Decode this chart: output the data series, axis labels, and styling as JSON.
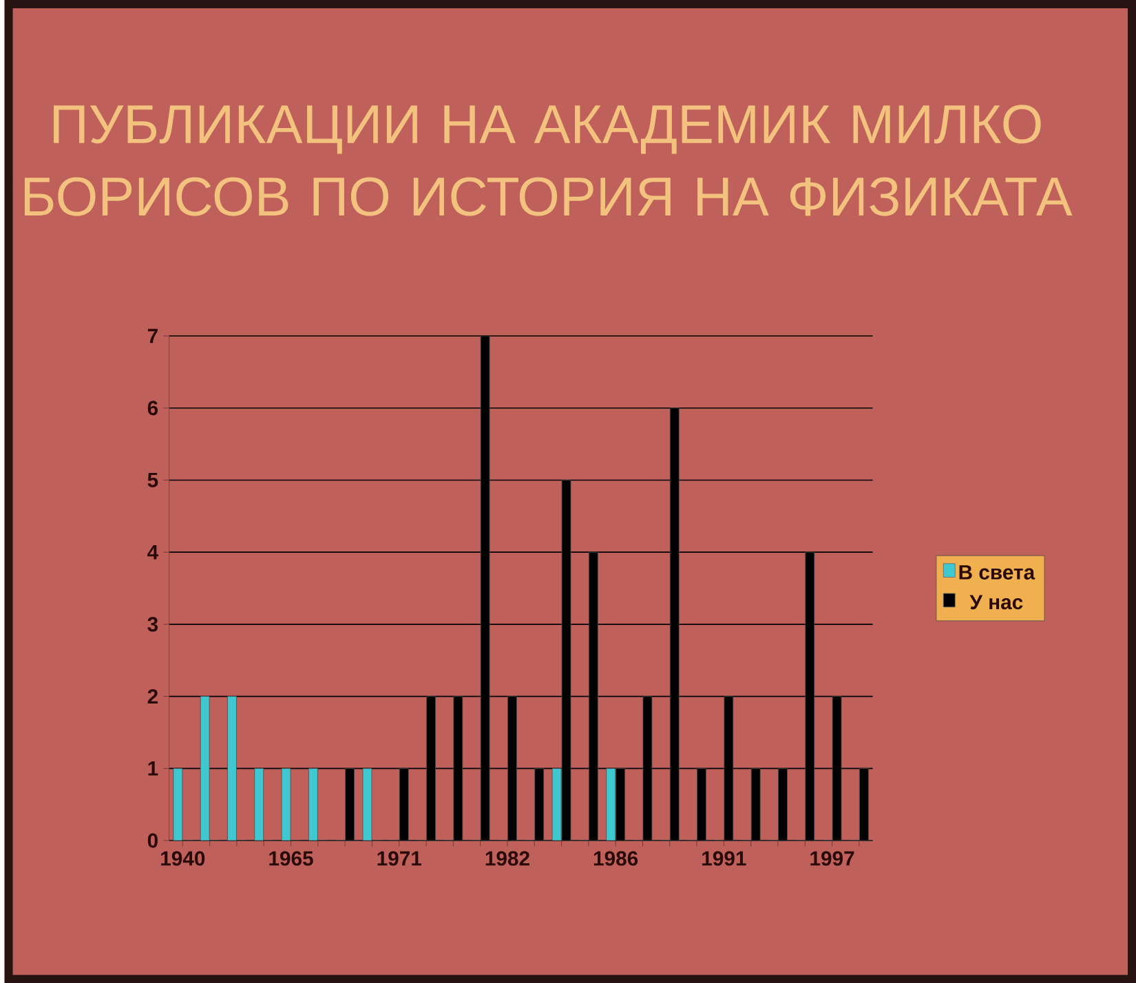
{
  "chart_data": {
    "type": "bar",
    "title": "ПУБЛИКАЦИИ НА АКАДЕМИК МИЛКО БОРИСОВ ПО ИСТОРИЯ НА ФИЗИКАТА",
    "categories": [
      "1940",
      null,
      null,
      null,
      "1965",
      null,
      null,
      null,
      "1971",
      null,
      null,
      null,
      "1982",
      null,
      null,
      null,
      "1986",
      null,
      null,
      null,
      "1991",
      null,
      null,
      null,
      "1997",
      null
    ],
    "series": [
      {
        "name": "В света",
        "color": "#40c8d0",
        "values": [
          1,
          2,
          2,
          1,
          1,
          1,
          0,
          1,
          0,
          0,
          0,
          0,
          0,
          0,
          1,
          0,
          1,
          0,
          0,
          0,
          0,
          0,
          0,
          0,
          0,
          0
        ]
      },
      {
        "name": "У нас",
        "color": "#000000",
        "values": [
          0,
          0,
          0,
          0,
          0,
          0,
          1,
          0,
          1,
          2,
          2,
          7,
          2,
          1,
          5,
          4,
          1,
          2,
          6,
          1,
          2,
          1,
          1,
          4,
          2,
          1
        ]
      }
    ],
    "ylim": [
      0,
      7
    ],
    "yticks": [
      0,
      1,
      2,
      3,
      4,
      5,
      6,
      7
    ],
    "grid": "y",
    "legend": "right"
  }
}
